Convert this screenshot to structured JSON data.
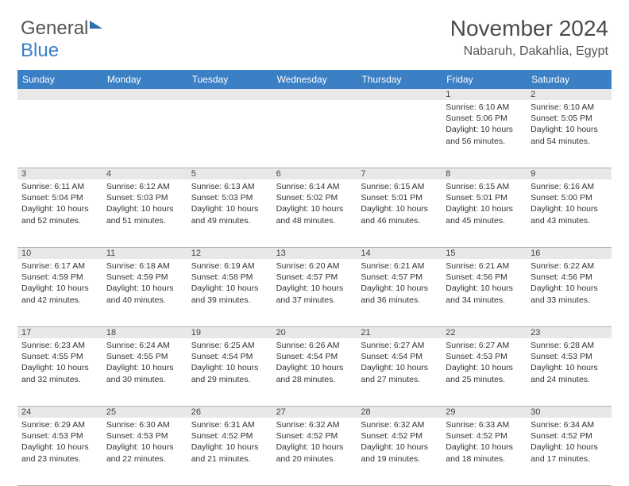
{
  "logo": {
    "part1": "General",
    "part2": "Blue"
  },
  "header": {
    "month": "November 2024",
    "location": "Nabaruh, Dakahlia, Egypt"
  },
  "weekdays": [
    "Sunday",
    "Monday",
    "Tuesday",
    "Wednesday",
    "Thursday",
    "Friday",
    "Saturday"
  ],
  "colors": {
    "header_bg": "#3b7fc4",
    "header_text": "#ffffff",
    "band_bg": "#e8e8e8",
    "border": "#b0b0b0",
    "text": "#333333",
    "title": "#4a4a4a"
  },
  "weeks": [
    {
      "days": [
        {
          "num": "",
          "lines": []
        },
        {
          "num": "",
          "lines": []
        },
        {
          "num": "",
          "lines": []
        },
        {
          "num": "",
          "lines": []
        },
        {
          "num": "",
          "lines": []
        },
        {
          "num": "1",
          "lines": [
            "Sunrise: 6:10 AM",
            "Sunset: 5:06 PM",
            "Daylight: 10 hours and 56 minutes."
          ]
        },
        {
          "num": "2",
          "lines": [
            "Sunrise: 6:10 AM",
            "Sunset: 5:05 PM",
            "Daylight: 10 hours and 54 minutes."
          ]
        }
      ]
    },
    {
      "days": [
        {
          "num": "3",
          "lines": [
            "Sunrise: 6:11 AM",
            "Sunset: 5:04 PM",
            "Daylight: 10 hours and 52 minutes."
          ]
        },
        {
          "num": "4",
          "lines": [
            "Sunrise: 6:12 AM",
            "Sunset: 5:03 PM",
            "Daylight: 10 hours and 51 minutes."
          ]
        },
        {
          "num": "5",
          "lines": [
            "Sunrise: 6:13 AM",
            "Sunset: 5:03 PM",
            "Daylight: 10 hours and 49 minutes."
          ]
        },
        {
          "num": "6",
          "lines": [
            "Sunrise: 6:14 AM",
            "Sunset: 5:02 PM",
            "Daylight: 10 hours and 48 minutes."
          ]
        },
        {
          "num": "7",
          "lines": [
            "Sunrise: 6:15 AM",
            "Sunset: 5:01 PM",
            "Daylight: 10 hours and 46 minutes."
          ]
        },
        {
          "num": "8",
          "lines": [
            "Sunrise: 6:15 AM",
            "Sunset: 5:01 PM",
            "Daylight: 10 hours and 45 minutes."
          ]
        },
        {
          "num": "9",
          "lines": [
            "Sunrise: 6:16 AM",
            "Sunset: 5:00 PM",
            "Daylight: 10 hours and 43 minutes."
          ]
        }
      ]
    },
    {
      "days": [
        {
          "num": "10",
          "lines": [
            "Sunrise: 6:17 AM",
            "Sunset: 4:59 PM",
            "Daylight: 10 hours and 42 minutes."
          ]
        },
        {
          "num": "11",
          "lines": [
            "Sunrise: 6:18 AM",
            "Sunset: 4:59 PM",
            "Daylight: 10 hours and 40 minutes."
          ]
        },
        {
          "num": "12",
          "lines": [
            "Sunrise: 6:19 AM",
            "Sunset: 4:58 PM",
            "Daylight: 10 hours and 39 minutes."
          ]
        },
        {
          "num": "13",
          "lines": [
            "Sunrise: 6:20 AM",
            "Sunset: 4:57 PM",
            "Daylight: 10 hours and 37 minutes."
          ]
        },
        {
          "num": "14",
          "lines": [
            "Sunrise: 6:21 AM",
            "Sunset: 4:57 PM",
            "Daylight: 10 hours and 36 minutes."
          ]
        },
        {
          "num": "15",
          "lines": [
            "Sunrise: 6:21 AM",
            "Sunset: 4:56 PM",
            "Daylight: 10 hours and 34 minutes."
          ]
        },
        {
          "num": "16",
          "lines": [
            "Sunrise: 6:22 AM",
            "Sunset: 4:56 PM",
            "Daylight: 10 hours and 33 minutes."
          ]
        }
      ]
    },
    {
      "days": [
        {
          "num": "17",
          "lines": [
            "Sunrise: 6:23 AM",
            "Sunset: 4:55 PM",
            "Daylight: 10 hours and 32 minutes."
          ]
        },
        {
          "num": "18",
          "lines": [
            "Sunrise: 6:24 AM",
            "Sunset: 4:55 PM",
            "Daylight: 10 hours and 30 minutes."
          ]
        },
        {
          "num": "19",
          "lines": [
            "Sunrise: 6:25 AM",
            "Sunset: 4:54 PM",
            "Daylight: 10 hours and 29 minutes."
          ]
        },
        {
          "num": "20",
          "lines": [
            "Sunrise: 6:26 AM",
            "Sunset: 4:54 PM",
            "Daylight: 10 hours and 28 minutes."
          ]
        },
        {
          "num": "21",
          "lines": [
            "Sunrise: 6:27 AM",
            "Sunset: 4:54 PM",
            "Daylight: 10 hours and 27 minutes."
          ]
        },
        {
          "num": "22",
          "lines": [
            "Sunrise: 6:27 AM",
            "Sunset: 4:53 PM",
            "Daylight: 10 hours and 25 minutes."
          ]
        },
        {
          "num": "23",
          "lines": [
            "Sunrise: 6:28 AM",
            "Sunset: 4:53 PM",
            "Daylight: 10 hours and 24 minutes."
          ]
        }
      ]
    },
    {
      "days": [
        {
          "num": "24",
          "lines": [
            "Sunrise: 6:29 AM",
            "Sunset: 4:53 PM",
            "Daylight: 10 hours and 23 minutes."
          ]
        },
        {
          "num": "25",
          "lines": [
            "Sunrise: 6:30 AM",
            "Sunset: 4:53 PM",
            "Daylight: 10 hours and 22 minutes."
          ]
        },
        {
          "num": "26",
          "lines": [
            "Sunrise: 6:31 AM",
            "Sunset: 4:52 PM",
            "Daylight: 10 hours and 21 minutes."
          ]
        },
        {
          "num": "27",
          "lines": [
            "Sunrise: 6:32 AM",
            "Sunset: 4:52 PM",
            "Daylight: 10 hours and 20 minutes."
          ]
        },
        {
          "num": "28",
          "lines": [
            "Sunrise: 6:32 AM",
            "Sunset: 4:52 PM",
            "Daylight: 10 hours and 19 minutes."
          ]
        },
        {
          "num": "29",
          "lines": [
            "Sunrise: 6:33 AM",
            "Sunset: 4:52 PM",
            "Daylight: 10 hours and 18 minutes."
          ]
        },
        {
          "num": "30",
          "lines": [
            "Sunrise: 6:34 AM",
            "Sunset: 4:52 PM",
            "Daylight: 10 hours and 17 minutes."
          ]
        }
      ]
    }
  ]
}
